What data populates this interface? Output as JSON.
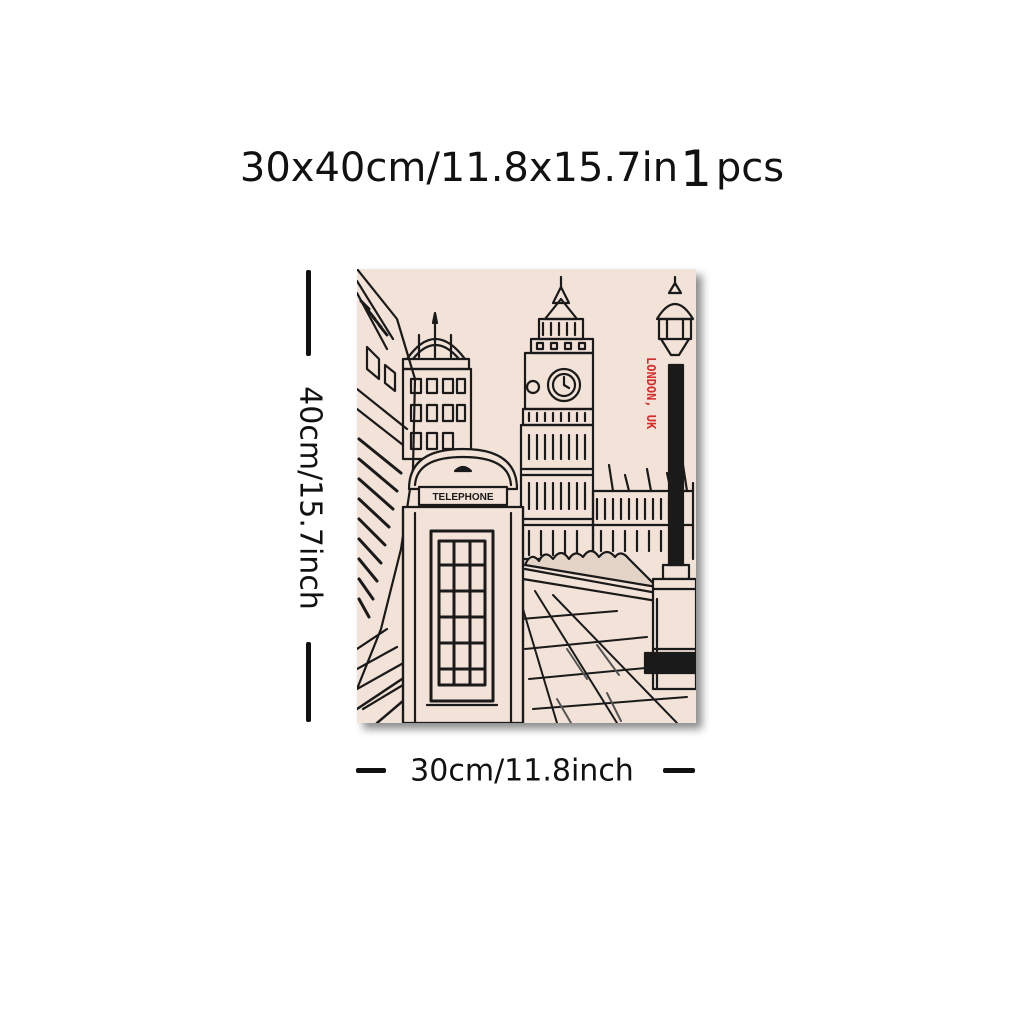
{
  "header": {
    "size_text": "30x40cm/11.8x15.7in",
    "quantity": "1",
    "quantity_unit": "pcs"
  },
  "dimensions": {
    "height_label": "40cm/15.7inch",
    "width_label": "30cm/11.8inch"
  },
  "artwork": {
    "booth_sign": "TELEPHONE",
    "caption": "LONDON, UK",
    "background_color": "#f2e2d7",
    "caption_color": "#d62b2b"
  }
}
